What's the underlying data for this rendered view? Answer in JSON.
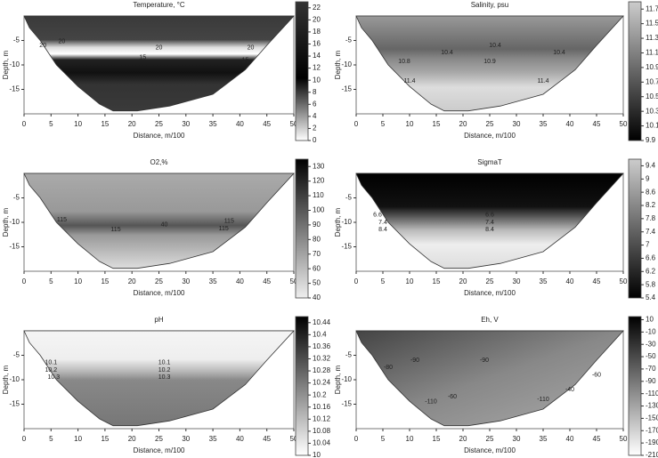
{
  "chart_data": [
    {
      "type": "contour",
      "title": "Temperature, °C",
      "xlabel": "Distance, m/100",
      "ylabel": "Depth, m",
      "xlim": [
        0,
        50
      ],
      "xticks": [
        0,
        5,
        10,
        15,
        20,
        25,
        30,
        35,
        40,
        45,
        50
      ],
      "ylim": [
        -20,
        0
      ],
      "yticks": [
        -15,
        -10,
        -5
      ],
      "clim": [
        0,
        23
      ],
      "cticks": [
        0,
        2,
        4,
        6,
        8,
        10,
        12,
        14,
        16,
        18,
        20,
        22
      ],
      "contour_labels": [
        {
          "value": 20,
          "x": 3.5,
          "y": -6
        },
        {
          "value": 20,
          "x": 7,
          "y": -5.2
        },
        {
          "value": 20,
          "x": 25,
          "y": -6.5
        },
        {
          "value": 15,
          "x": 22,
          "y": -8.5
        },
        {
          "value": 20,
          "x": 42,
          "y": -6.5
        },
        {
          "value": 15,
          "x": 41,
          "y": -9
        }
      ]
    },
    {
      "type": "contour",
      "title": "Salinity, psu",
      "xlabel": "Distance, m/100",
      "ylabel": "Depth, m",
      "xlim": [
        0,
        50
      ],
      "xticks": [
        0,
        5,
        10,
        15,
        20,
        25,
        30,
        35,
        40,
        45,
        50
      ],
      "ylim": [
        -20,
        0
      ],
      "yticks": [
        -15,
        -10,
        -5
      ],
      "clim": [
        9.9,
        11.8
      ],
      "cticks": [
        9.9,
        10.1,
        10.3,
        10.5,
        10.7,
        10.9,
        11.1,
        11.3,
        11.5,
        11.7
      ],
      "contour_labels": [
        {
          "value": 10.4,
          "x": 26,
          "y": -6
        },
        {
          "value": 10.4,
          "x": 17,
          "y": -7.5
        },
        {
          "value": 10.4,
          "x": 38,
          "y": -7.5
        },
        {
          "value": 10.8,
          "x": 9,
          "y": -9.3
        },
        {
          "value": 10.9,
          "x": 25,
          "y": -9.3
        },
        {
          "value": 11.4,
          "x": 10,
          "y": -13.3
        },
        {
          "value": 11.4,
          "x": 35,
          "y": -13.3
        }
      ]
    },
    {
      "type": "contour",
      "title": "O2,%",
      "xlabel": "Distance, m/100",
      "ylabel": "Depth, m",
      "xlim": [
        0,
        50
      ],
      "xticks": [
        0,
        5,
        10,
        15,
        20,
        25,
        30,
        35,
        40,
        45,
        50
      ],
      "ylim": [
        -20,
        0
      ],
      "yticks": [
        -15,
        -10,
        -5
      ],
      "clim": [
        40,
        135
      ],
      "cticks": [
        40,
        50,
        60,
        70,
        80,
        90,
        100,
        110,
        120,
        130
      ],
      "contour_labels": [
        {
          "value": 115,
          "x": 7,
          "y": -9.5
        },
        {
          "value": 115,
          "x": 17,
          "y": -11.5
        },
        {
          "value": 40,
          "x": 26,
          "y": -10.5
        },
        {
          "value": 115,
          "x": 38,
          "y": -9.8
        },
        {
          "value": 115,
          "x": 37,
          "y": -11.3
        }
      ]
    },
    {
      "type": "contour",
      "title": "SigmaT",
      "xlabel": "Distance, m/100",
      "ylabel": "Depth, m",
      "xlim": [
        0,
        50
      ],
      "xticks": [
        0,
        5,
        10,
        15,
        20,
        25,
        30,
        35,
        40,
        45,
        50
      ],
      "ylim": [
        -20,
        0
      ],
      "yticks": [
        -15,
        -10,
        -5
      ],
      "clim": [
        5.4,
        9.6
      ],
      "cticks": [
        5.4,
        5.8,
        6.2,
        6.6,
        7,
        7.4,
        7.8,
        8.2,
        8.6,
        9,
        9.4
      ],
      "contour_labels": [
        {
          "value": 6.6,
          "x": 4,
          "y": -8.5
        },
        {
          "value": 6.6,
          "x": 25,
          "y": -8.5
        },
        {
          "value": 7.4,
          "x": 5,
          "y": -10
        },
        {
          "value": 7.4,
          "x": 25,
          "y": -10
        },
        {
          "value": 8.4,
          "x": 5,
          "y": -11.5
        },
        {
          "value": 8.4,
          "x": 25,
          "y": -11.5
        }
      ]
    },
    {
      "type": "contour",
      "title": "pH",
      "xlabel": "Distance, m/100",
      "ylabel": "Depth, m",
      "xlim": [
        0,
        50
      ],
      "xticks": [
        0,
        5,
        10,
        15,
        20,
        25,
        30,
        35,
        40,
        45,
        50
      ],
      "ylim": [
        -20,
        0
      ],
      "yticks": [
        -15,
        -10,
        -5
      ],
      "clim": [
        10,
        10.46
      ],
      "cticks": [
        10,
        10.04,
        10.08,
        10.12,
        10.16,
        10.2,
        10.24,
        10.28,
        10.32,
        10.36,
        10.4,
        10.44
      ],
      "contour_labels": [
        {
          "value": 10.1,
          "x": 5,
          "y": -6.5
        },
        {
          "value": 10.2,
          "x": 5,
          "y": -8
        },
        {
          "value": 10.3,
          "x": 5.5,
          "y": -9.5
        },
        {
          "value": 10.1,
          "x": 26,
          "y": -6.5
        },
        {
          "value": 10.2,
          "x": 26,
          "y": -8
        },
        {
          "value": 10.3,
          "x": 26,
          "y": -9.5
        }
      ]
    },
    {
      "type": "contour",
      "title": "Eh, V",
      "xlabel": "Distance, m/100",
      "ylabel": "Depth, m",
      "xlim": [
        0,
        50
      ],
      "xticks": [
        0,
        5,
        10,
        15,
        20,
        25,
        30,
        35,
        40,
        45,
        50
      ],
      "ylim": [
        -20,
        0
      ],
      "yticks": [
        -15,
        -10,
        -5
      ],
      "clim": [
        -210,
        15
      ],
      "cticks": [
        -210,
        -190,
        -170,
        -150,
        -130,
        -110,
        -90,
        -70,
        -50,
        -30,
        -10,
        10
      ],
      "contour_labels": [
        {
          "value": -80,
          "x": 6,
          "y": -7.5
        },
        {
          "value": -90,
          "x": 11,
          "y": -6
        },
        {
          "value": -90,
          "x": 24,
          "y": -6
        },
        {
          "value": -60,
          "x": 45,
          "y": -9
        },
        {
          "value": -60,
          "x": 18,
          "y": -13.5
        },
        {
          "value": -40,
          "x": 40,
          "y": -12
        },
        {
          "value": -110,
          "x": 14,
          "y": -14.5
        },
        {
          "value": -110,
          "x": 35,
          "y": -14
        }
      ]
    }
  ]
}
